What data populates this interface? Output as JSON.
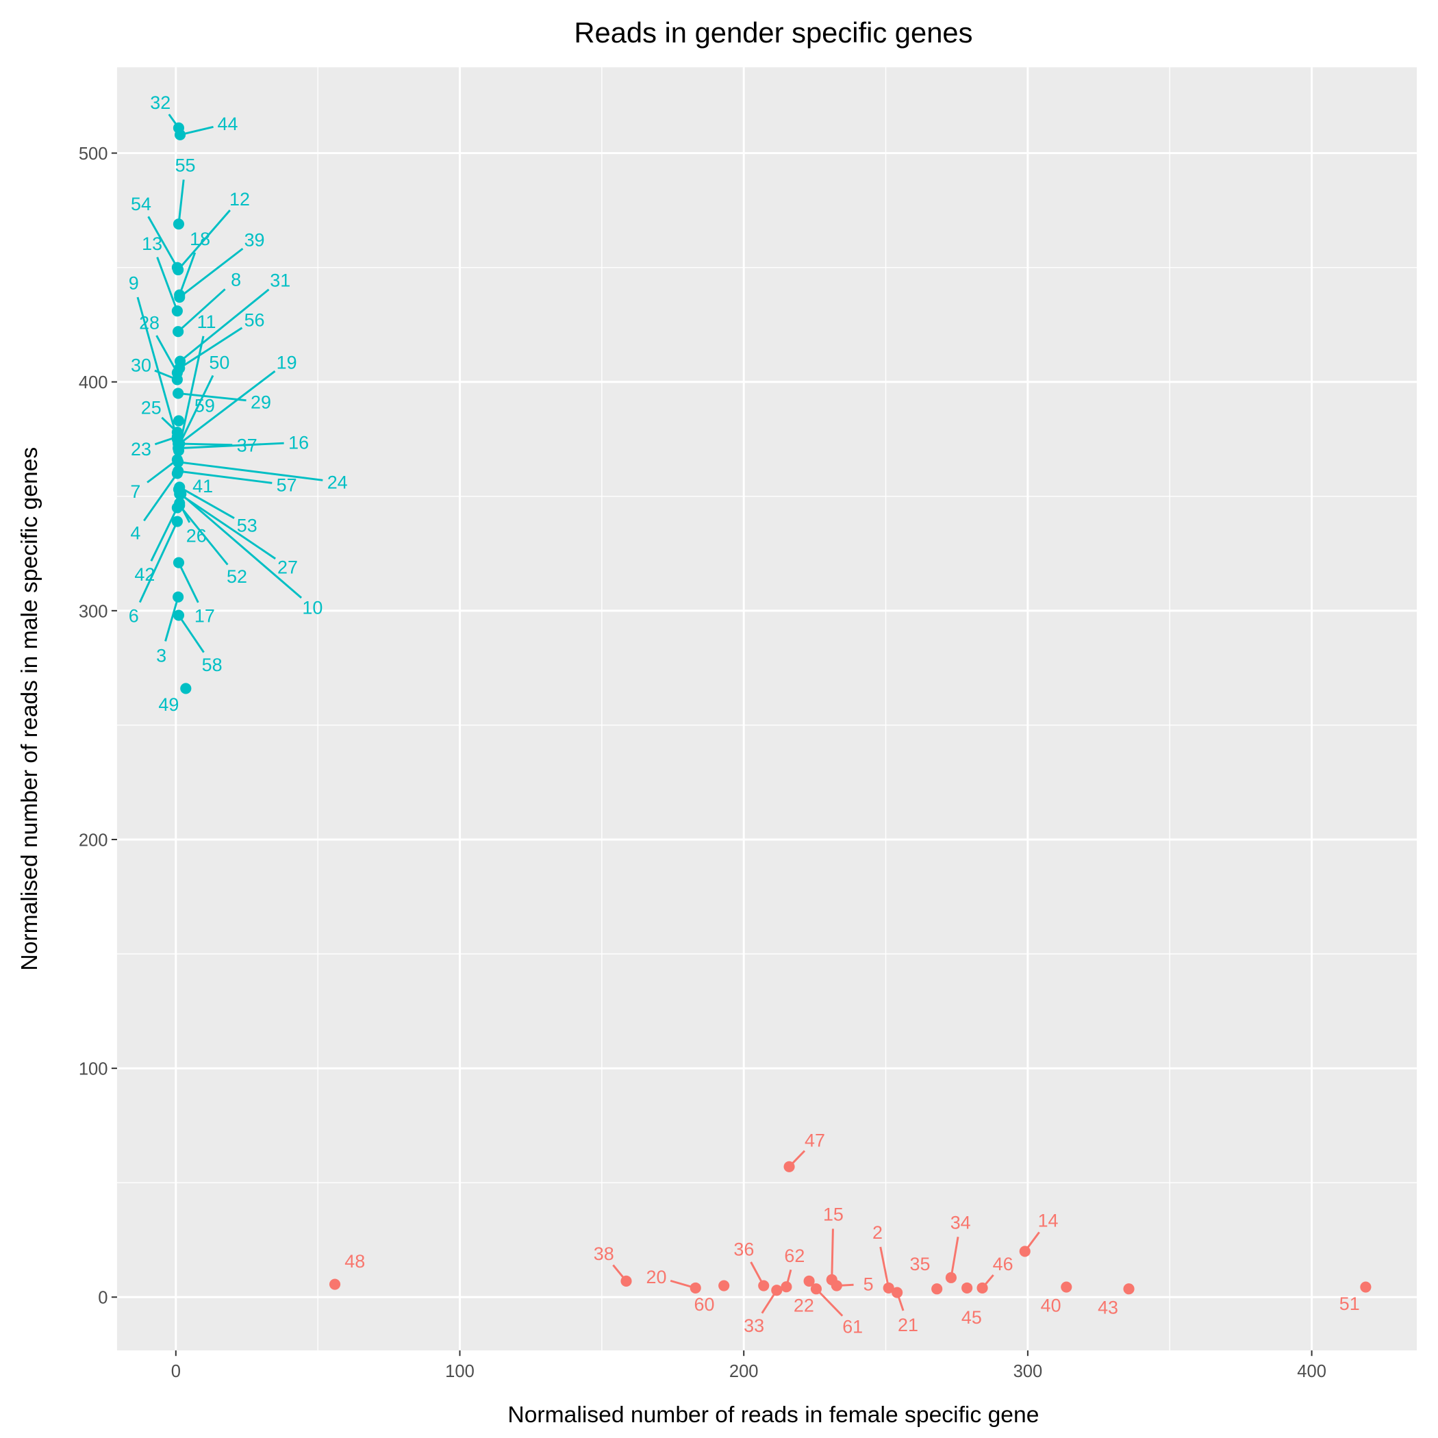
{
  "chart_data": {
    "type": "scatter",
    "title": "Reads in gender specific genes",
    "xlabel": "Normalised number of reads in female specific gene",
    "ylabel": "Normalised number of reads in male specific genes",
    "xlim": [
      -20.7,
      437
    ],
    "ylim": [
      -23.3,
      537.5
    ],
    "x_ticks": [
      0,
      100,
      200,
      300,
      400
    ],
    "y_ticks": [
      0,
      100,
      200,
      300,
      400,
      500
    ],
    "x_tick_labels": [
      "0",
      "100",
      "200",
      "300",
      "400"
    ],
    "y_tick_labels": [
      "0",
      "100",
      "200",
      "300",
      "400",
      "500"
    ],
    "grid": true,
    "legend": "none",
    "series": [
      {
        "name": "male",
        "color": "#00BFC4",
        "points": [
          {
            "id": "32",
            "x": 1,
            "y": 511
          },
          {
            "id": "44",
            "x": 1.5,
            "y": 508
          },
          {
            "id": "55",
            "x": 1,
            "y": 469
          },
          {
            "id": "54",
            "x": 0.5,
            "y": 450
          },
          {
            "id": "12",
            "x": 0.8,
            "y": 449
          },
          {
            "id": "18",
            "x": 1.3,
            "y": 438
          },
          {
            "id": "39",
            "x": 1.3,
            "y": 437
          },
          {
            "id": "13",
            "x": 0.5,
            "y": 431
          },
          {
            "id": "8",
            "x": 0.8,
            "y": 422
          },
          {
            "id": "31",
            "x": 1.5,
            "y": 409
          },
          {
            "id": "11",
            "x": 1,
            "y": 370
          },
          {
            "id": "56",
            "x": 1.3,
            "y": 406
          },
          {
            "id": "28",
            "x": 0.5,
            "y": 404
          },
          {
            "id": "30",
            "x": 0.5,
            "y": 401
          },
          {
            "id": "9",
            "x": 0.5,
            "y": 375
          },
          {
            "id": "50",
            "x": 1,
            "y": 372
          },
          {
            "id": "29",
            "x": 0.8,
            "y": 395
          },
          {
            "id": "19",
            "x": 1.3,
            "y": 373
          },
          {
            "id": "59",
            "x": 1,
            "y": 383
          },
          {
            "id": "25",
            "x": 0.5,
            "y": 378
          },
          {
            "id": "23",
            "x": 0.5,
            "y": 376
          },
          {
            "id": "37",
            "x": 0.8,
            "y": 373
          },
          {
            "id": "16",
            "x": 0.8,
            "y": 371
          },
          {
            "id": "7",
            "x": 0.5,
            "y": 366
          },
          {
            "id": "24",
            "x": 0.8,
            "y": 365
          },
          {
            "id": "57",
            "x": 0.8,
            "y": 361
          },
          {
            "id": "41",
            "x": 1,
            "y": 353
          },
          {
            "id": "4",
            "x": 0.5,
            "y": 360
          },
          {
            "id": "53",
            "x": 1.3,
            "y": 354
          },
          {
            "id": "26",
            "x": 1.3,
            "y": 347
          },
          {
            "id": "42",
            "x": 0.5,
            "y": 345
          },
          {
            "id": "27",
            "x": 1.3,
            "y": 351
          },
          {
            "id": "52",
            "x": 1.3,
            "y": 346
          },
          {
            "id": "10",
            "x": 1.8,
            "y": 351
          },
          {
            "id": "6",
            "x": 0.5,
            "y": 339
          },
          {
            "id": "17",
            "x": 1,
            "y": 321
          },
          {
            "id": "3",
            "x": 0.8,
            "y": 306
          },
          {
            "id": "58",
            "x": 1,
            "y": 298
          },
          {
            "id": "49",
            "x": 3.5,
            "y": 266
          }
        ]
      },
      {
        "name": "female",
        "color": "#F8766D",
        "points": [
          {
            "id": "48",
            "x": 56,
            "y": 5.6
          },
          {
            "id": "38",
            "x": 158.6,
            "y": 7
          },
          {
            "id": "20",
            "x": 183,
            "y": 4
          },
          {
            "id": "60",
            "x": 193,
            "y": 5
          },
          {
            "id": "36",
            "x": 207,
            "y": 5
          },
          {
            "id": "33",
            "x": 211.6,
            "y": 3
          },
          {
            "id": "62",
            "x": 215,
            "y": 4.5
          },
          {
            "id": "22",
            "x": 223,
            "y": 7
          },
          {
            "id": "47",
            "x": 216,
            "y": 57
          },
          {
            "id": "61",
            "x": 225.5,
            "y": 3.6
          },
          {
            "id": "15",
            "x": 231,
            "y": 7.6
          },
          {
            "id": "5",
            "x": 232.7,
            "y": 5
          },
          {
            "id": "2",
            "x": 251,
            "y": 4
          },
          {
            "id": "21",
            "x": 254,
            "y": 2
          },
          {
            "id": "35",
            "x": 268,
            "y": 3.6
          },
          {
            "id": "34",
            "x": 273,
            "y": 8.5
          },
          {
            "id": "45",
            "x": 278.6,
            "y": 4
          },
          {
            "id": "46",
            "x": 284,
            "y": 4
          },
          {
            "id": "14",
            "x": 299,
            "y": 20
          },
          {
            "id": "40",
            "x": 313.6,
            "y": 4.4
          },
          {
            "id": "43",
            "x": 335.6,
            "y": 3.6
          },
          {
            "id": "51",
            "x": 419,
            "y": 4.4
          }
        ]
      }
    ]
  }
}
